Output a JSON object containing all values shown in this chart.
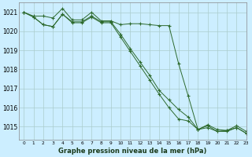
{
  "title": "Graphe pression niveau de la mer (hPa)",
  "background_color": "#cceeff",
  "grid_color": "#aacccc",
  "line_color": "#2d6a2d",
  "xlim": [
    -0.5,
    23
  ],
  "ylim": [
    1014.3,
    1021.5
  ],
  "yticks": [
    1015,
    1016,
    1017,
    1018,
    1019,
    1020,
    1021
  ],
  "xticks": [
    0,
    1,
    2,
    3,
    4,
    5,
    6,
    7,
    8,
    9,
    10,
    11,
    12,
    13,
    14,
    15,
    16,
    17,
    18,
    19,
    20,
    21,
    22,
    23
  ],
  "series1": [
    1021.0,
    1020.8,
    1020.8,
    1020.7,
    1021.2,
    1020.6,
    1020.6,
    1021.0,
    1020.55,
    1020.55,
    1020.35,
    1020.4,
    1020.4,
    1020.35,
    1020.3,
    1020.3,
    1018.3,
    1016.6,
    1014.85,
    1015.1,
    1014.85,
    1014.8,
    1015.05,
    1014.75
  ],
  "series2": [
    1021.0,
    1020.75,
    1020.35,
    1020.25,
    1020.9,
    1020.5,
    1020.5,
    1020.8,
    1020.5,
    1020.5,
    1019.85,
    1019.1,
    1018.4,
    1017.7,
    1016.9,
    1016.4,
    1015.9,
    1015.5,
    1014.85,
    1014.95,
    1014.75,
    1014.8,
    1014.95,
    1014.65
  ],
  "series3": [
    1021.0,
    1020.75,
    1020.35,
    1020.25,
    1020.9,
    1020.45,
    1020.45,
    1020.75,
    1020.45,
    1020.45,
    1019.7,
    1018.95,
    1018.2,
    1017.45,
    1016.7,
    1016.0,
    1015.4,
    1015.3,
    1014.85,
    1015.05,
    1014.75,
    1014.75,
    1014.95,
    1014.65
  ]
}
